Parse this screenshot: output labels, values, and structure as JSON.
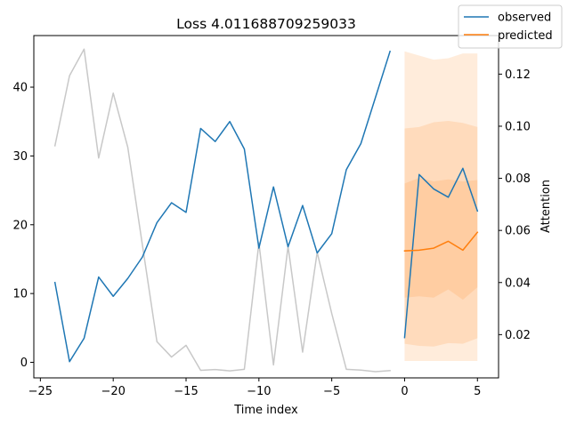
{
  "chart_data": {
    "type": "line",
    "title": "Loss 4.011688709259033",
    "xlabel": "Time index",
    "ylabel": "",
    "y2label": "Attention",
    "xlim": [
      -25.45,
      6.45
    ],
    "ylim": [
      -2.26,
      47.5
    ],
    "y2lim": [
      0.0034,
      0.1348
    ],
    "xticks": [
      -25,
      -20,
      -15,
      -10,
      -5,
      0,
      5
    ],
    "yticks": [
      0,
      10,
      20,
      30,
      40
    ],
    "y2ticks": [
      0.02,
      0.04,
      0.06,
      0.08,
      0.1,
      0.12
    ],
    "y2ticklabels": [
      "0.02",
      "0.04",
      "0.06",
      "0.08",
      "0.10",
      "0.12"
    ],
    "legend": {
      "placement": "top-right",
      "entries": [
        {
          "label": "observed",
          "color": "#1f77b4"
        },
        {
          "label": "predicted",
          "color": "#ff7f0e"
        }
      ]
    },
    "series": [
      {
        "name": "observed",
        "color": "#1f77b4",
        "axis": "left",
        "x": [
          -24,
          -23,
          -22,
          -21,
          -20,
          -19,
          -18,
          -17,
          -16,
          -15,
          -14,
          -13,
          -12,
          -11,
          -10,
          -9,
          -8,
          -7,
          -6,
          -5,
          -4,
          -3,
          -2,
          -1
        ],
        "y": [
          11.6,
          0.1,
          3.5,
          12.4,
          9.6,
          12.2,
          15.3,
          20.3,
          23.2,
          21.8,
          34.0,
          32.1,
          35.0,
          31.0,
          16.6,
          25.5,
          16.8,
          22.8,
          15.9,
          18.7,
          28.0,
          31.8,
          38.5,
          45.2
        ]
      },
      {
        "name": "observed",
        "color": "#1f77b4",
        "axis": "left",
        "x": [
          0,
          1,
          2,
          3,
          4,
          5
        ],
        "y": [
          3.6,
          27.3,
          25.2,
          24.0,
          28.2,
          22.0
        ]
      },
      {
        "name": "predicted",
        "color": "#ff7f0e",
        "axis": "left",
        "x": [
          0,
          1,
          2,
          3,
          4,
          5
        ],
        "y": [
          16.2,
          16.3,
          16.6,
          17.6,
          16.3,
          18.9
        ]
      },
      {
        "name": "attention",
        "color": "#c8c8c8",
        "axis": "right",
        "x": [
          -24,
          -23,
          -22,
          -21,
          -20,
          -19,
          -18,
          -17,
          -16,
          -15,
          -14,
          -13,
          -12,
          -11,
          -10,
          -9,
          -8,
          -7,
          -6,
          -5,
          -4,
          -3,
          -2,
          -1
        ],
        "y": [
          0.0925,
          0.1194,
          0.1296,
          0.0878,
          0.1127,
          0.0919,
          0.0545,
          0.0173,
          0.0114,
          0.0159,
          0.0063,
          0.0066,
          0.0061,
          0.0067,
          0.0552,
          0.0084,
          0.0539,
          0.0133,
          0.0516,
          0.0281,
          0.0067,
          0.0064,
          0.0058,
          0.0062
        ]
      }
    ],
    "bands": [
      {
        "color": "#ff7f0e",
        "opacity": 0.15,
        "x": [
          0,
          1,
          2,
          3,
          4,
          5
        ],
        "lower": [
          0.2,
          0.2,
          0.2,
          0.2,
          0.2,
          0.2
        ],
        "upper": [
          45.2,
          44.6,
          44.0,
          44.2,
          44.9,
          44.9
        ]
      },
      {
        "color": "#ff7f0e",
        "opacity": 0.15,
        "x": [
          0,
          1,
          2,
          3,
          4,
          5
        ],
        "lower": [
          2.7,
          2.4,
          2.3,
          2.8,
          2.7,
          3.5
        ],
        "upper": [
          34.0,
          34.2,
          34.9,
          35.1,
          34.8,
          34.2
        ]
      },
      {
        "color": "#ff7f0e",
        "opacity": 0.15,
        "x": [
          0,
          1,
          2,
          3,
          4,
          5
        ],
        "lower": [
          9.4,
          9.6,
          9.4,
          10.6,
          9.1,
          10.9
        ],
        "upper": [
          26.0,
          26.8,
          26.3,
          26.6,
          26.3,
          26.5
        ]
      }
    ]
  }
}
